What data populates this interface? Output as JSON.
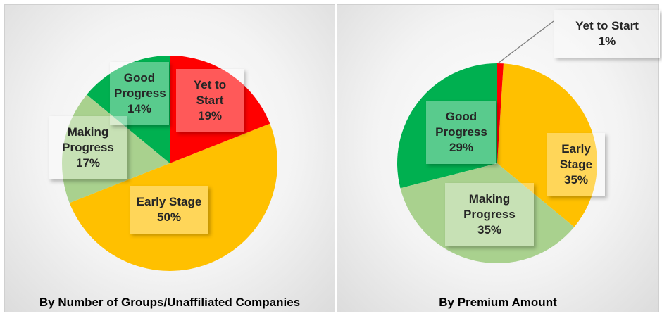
{
  "chart_data": [
    {
      "type": "pie",
      "title": "By Number of Groups/Unaffiliated Companies",
      "categories": [
        "Yet to Start",
        "Early Stage",
        "Making Progress",
        "Good Progress"
      ],
      "values": [
        19,
        50,
        17,
        14
      ],
      "value_labels": [
        "19%",
        "50%",
        "17%",
        "14%"
      ],
      "colors": [
        "#ff0000",
        "#ffc000",
        "#a9d18e",
        "#00b050"
      ]
    },
    {
      "type": "pie",
      "title": "By Premium Amount",
      "categories": [
        "Yet to Start",
        "Early Stage",
        "Making Progress",
        "Good Progress"
      ],
      "values": [
        1,
        35,
        35,
        29
      ],
      "value_labels": [
        "1%",
        "35%",
        "35%",
        "29%"
      ],
      "colors": [
        "#ff0000",
        "#ffc000",
        "#a9d18e",
        "#00b050"
      ]
    }
  ]
}
